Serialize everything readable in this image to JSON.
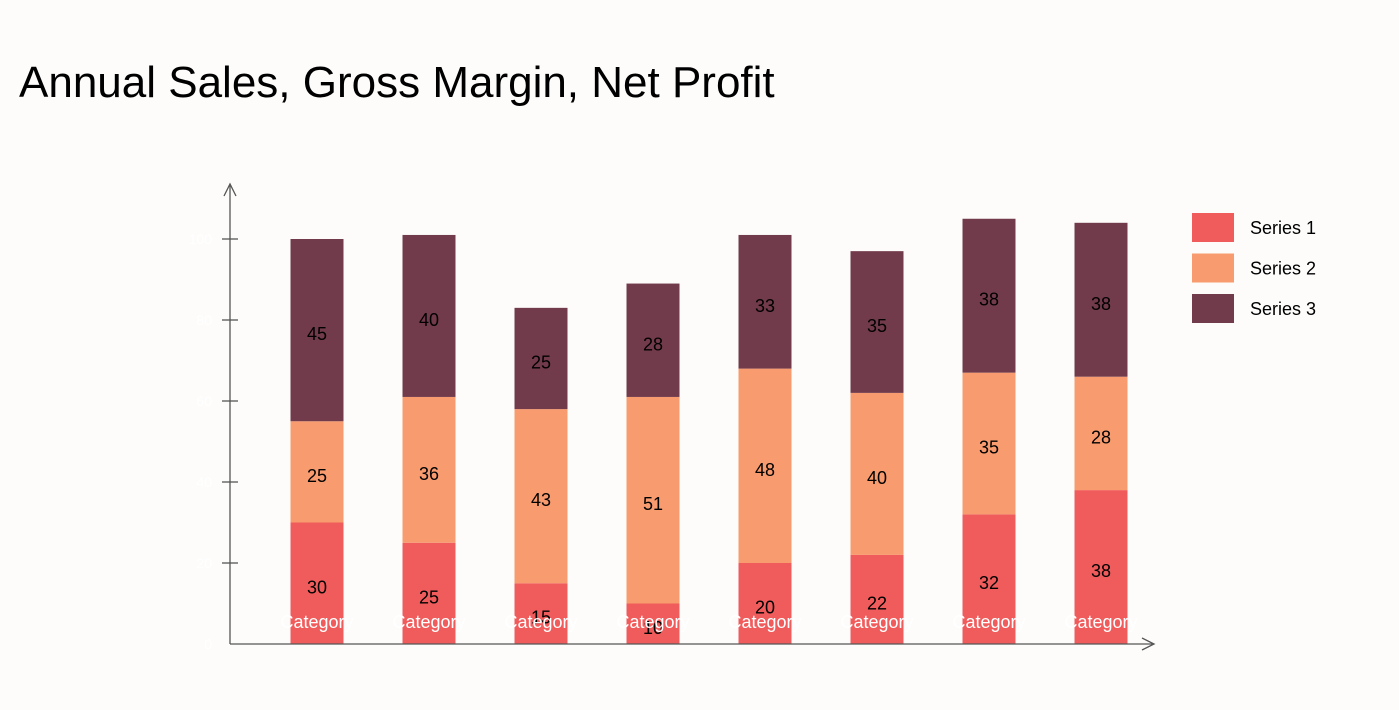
{
  "chart_data": {
    "type": "bar",
    "stacked": true,
    "title": "Annual Sales, Gross Margin, Net Profit",
    "xlabel": "",
    "ylabel": "",
    "categories": [
      "Category",
      "Category",
      "Category",
      "Category",
      "Category",
      "Category",
      "Category",
      "Category"
    ],
    "series": [
      {
        "name": "Series 1",
        "color": "#f05c5c",
        "values": [
          30,
          25,
          15,
          10,
          20,
          22,
          32,
          38
        ]
      },
      {
        "name": "Series 2",
        "color": "#f89b6e",
        "values": [
          25,
          36,
          43,
          51,
          48,
          40,
          35,
          28
        ]
      },
      {
        "name": "Series 3",
        "color": "#723b4c",
        "values": [
          45,
          40,
          25,
          28,
          33,
          35,
          38,
          38
        ]
      }
    ],
    "yticks": [
      0,
      20,
      40,
      60,
      80,
      100
    ],
    "ylim": [
      0,
      110
    ],
    "grid": false,
    "legend_position": "right"
  }
}
